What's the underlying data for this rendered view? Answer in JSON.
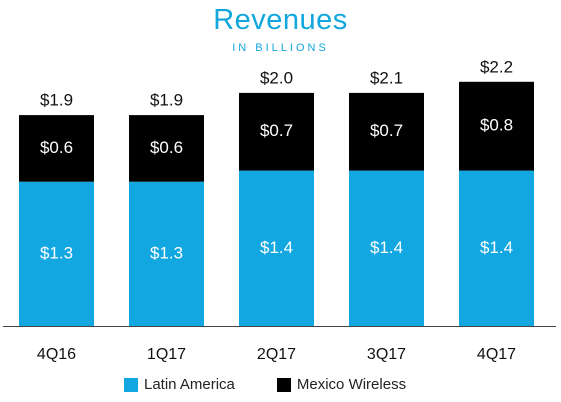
{
  "chart_data": {
    "type": "bar",
    "stacked": true,
    "title": "Revenues",
    "subtitle": "IN BILLIONS",
    "categories": [
      "4Q16",
      "1Q17",
      "2Q17",
      "3Q17",
      "4Q17"
    ],
    "series": [
      {
        "name": "Latin America",
        "color": "#12a7e0",
        "values": [
          1.3,
          1.3,
          1.4,
          1.4,
          1.4
        ],
        "labels": [
          "$1.3",
          "$1.3",
          "$1.4",
          "$1.4",
          "$1.4"
        ]
      },
      {
        "name": "Mexico Wireless",
        "color": "#000000",
        "values": [
          0.6,
          0.6,
          0.7,
          0.7,
          0.8
        ],
        "labels": [
          "$0.6",
          "$0.6",
          "$0.7",
          "$0.7",
          "$0.8"
        ]
      }
    ],
    "totals": [
      1.9,
      1.9,
      2.0,
      2.1,
      2.2
    ],
    "total_labels": [
      "$1.9",
      "$1.9",
      "$2.0",
      "$2.1",
      "$2.2"
    ],
    "legend_position": "bottom",
    "grid": false
  }
}
